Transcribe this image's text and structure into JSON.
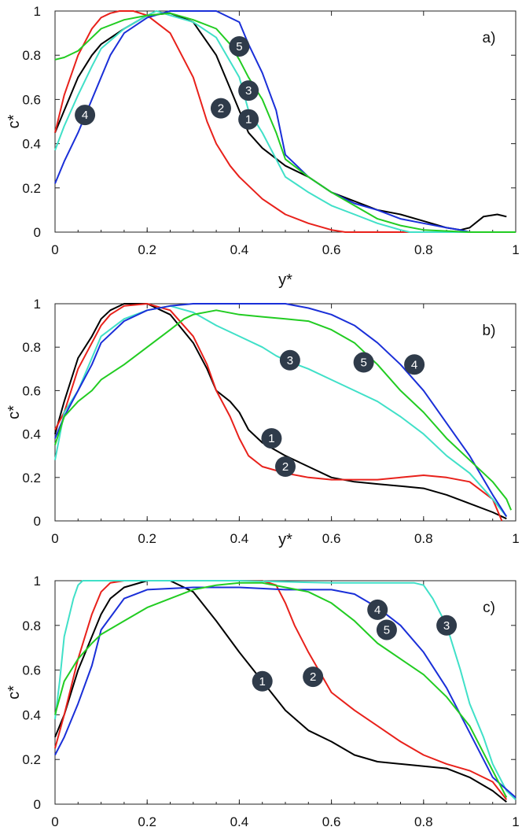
{
  "colors": {
    "1": "#000000",
    "2": "#e8211b",
    "3": "#40e0c8",
    "4": "#1a2fd8",
    "5": "#22cc22",
    "marker": "#2f3b4a"
  },
  "chart_data": [
    {
      "type": "line",
      "panel_label": "a)",
      "xlabel": "y*",
      "ylabel": "c*",
      "xlim": [
        0,
        1
      ],
      "ylim": [
        0,
        1
      ],
      "xticks": [
        "0",
        "0.2",
        "0.4",
        "0.6",
        "0.8",
        "1"
      ],
      "yticks": [
        "0",
        "0.2",
        "0.4",
        "0.6",
        "0.8",
        "1"
      ],
      "series": [
        {
          "name": "1",
          "x": [
            0,
            0.02,
            0.05,
            0.08,
            0.1,
            0.15,
            0.2,
            0.25,
            0.3,
            0.35,
            0.38,
            0.42,
            0.45,
            0.5,
            0.55,
            0.6,
            0.65,
            0.7,
            0.75,
            0.8,
            0.85,
            0.88,
            0.9,
            0.93,
            0.96,
            0.98
          ],
          "y": [
            0.45,
            0.55,
            0.7,
            0.8,
            0.85,
            0.92,
            0.98,
            0.99,
            0.95,
            0.8,
            0.65,
            0.45,
            0.38,
            0.3,
            0.25,
            0.18,
            0.14,
            0.1,
            0.08,
            0.05,
            0.02,
            0.01,
            0.02,
            0.07,
            0.08,
            0.07
          ]
        },
        {
          "name": "2",
          "x": [
            0,
            0.02,
            0.05,
            0.08,
            0.1,
            0.12,
            0.14,
            0.17,
            0.2,
            0.25,
            0.3,
            0.33,
            0.35,
            0.38,
            0.4,
            0.45,
            0.5,
            0.55,
            0.6,
            0.63,
            0.65,
            0.7,
            0.75,
            0.8
          ],
          "y": [
            0.45,
            0.62,
            0.8,
            0.92,
            0.97,
            0.99,
            1,
            1,
            0.98,
            0.9,
            0.7,
            0.5,
            0.4,
            0.3,
            0.25,
            0.15,
            0.08,
            0.04,
            0.01,
            0,
            0,
            0,
            0,
            0
          ]
        },
        {
          "name": "3",
          "x": [
            0,
            0.02,
            0.05,
            0.08,
            0.1,
            0.15,
            0.2,
            0.22,
            0.25,
            0.3,
            0.35,
            0.4,
            0.42,
            0.45,
            0.48,
            0.5,
            0.55,
            0.6,
            0.65,
            0.7,
            0.75,
            0.77,
            0.8,
            0.9,
            1.0
          ],
          "y": [
            0.37,
            0.48,
            0.62,
            0.75,
            0.83,
            0.92,
            0.98,
            1,
            0.98,
            0.95,
            0.88,
            0.7,
            0.55,
            0.45,
            0.33,
            0.25,
            0.18,
            0.12,
            0.08,
            0.04,
            0.01,
            0,
            0,
            0,
            0
          ]
        },
        {
          "name": "4",
          "x": [
            0,
            0.02,
            0.05,
            0.08,
            0.1,
            0.12,
            0.15,
            0.2,
            0.25,
            0.3,
            0.35,
            0.4,
            0.42,
            0.45,
            0.48,
            0.5,
            0.55,
            0.6,
            0.65,
            0.7,
            0.75,
            0.8,
            0.85,
            0.88,
            0.9,
            1.0
          ],
          "y": [
            0.22,
            0.32,
            0.45,
            0.6,
            0.7,
            0.8,
            0.9,
            0.97,
            1,
            1,
            1,
            0.95,
            0.85,
            0.72,
            0.55,
            0.35,
            0.25,
            0.18,
            0.13,
            0.1,
            0.06,
            0.04,
            0.02,
            0.01,
            0,
            0
          ]
        },
        {
          "name": "5",
          "x": [
            0,
            0.02,
            0.05,
            0.08,
            0.1,
            0.15,
            0.2,
            0.25,
            0.3,
            0.35,
            0.38,
            0.4,
            0.42,
            0.45,
            0.48,
            0.5,
            0.55,
            0.6,
            0.65,
            0.7,
            0.75,
            0.8,
            0.9,
            1.0
          ],
          "y": [
            0.78,
            0.79,
            0.82,
            0.88,
            0.92,
            0.96,
            0.98,
            0.99,
            0.96,
            0.92,
            0.85,
            0.78,
            0.7,
            0.6,
            0.45,
            0.33,
            0.25,
            0.18,
            0.12,
            0.06,
            0.03,
            0.01,
            0,
            0
          ]
        }
      ],
      "markers": [
        {
          "label": "1",
          "x": 0.42,
          "y": 0.51
        },
        {
          "label": "2",
          "x": 0.36,
          "y": 0.56
        },
        {
          "label": "3",
          "x": 0.42,
          "y": 0.64
        },
        {
          "label": "4",
          "x": 0.065,
          "y": 0.53
        },
        {
          "label": "5",
          "x": 0.4,
          "y": 0.84
        }
      ]
    },
    {
      "type": "line",
      "panel_label": "b)",
      "xlabel": "y*",
      "ylabel": "c*",
      "xlim": [
        0,
        1
      ],
      "ylim": [
        0,
        1
      ],
      "xticks": [
        "0",
        "0.2",
        "0.4",
        "0.6",
        "0.8",
        "1"
      ],
      "yticks": [
        "0",
        "0.2",
        "0.4",
        "0.6",
        "0.8",
        "1"
      ],
      "series": [
        {
          "name": "1",
          "x": [
            0,
            0.02,
            0.05,
            0.08,
            0.1,
            0.12,
            0.15,
            0.2,
            0.25,
            0.3,
            0.33,
            0.35,
            0.38,
            0.4,
            0.42,
            0.45,
            0.5,
            0.55,
            0.6,
            0.65,
            0.7,
            0.75,
            0.8,
            0.85,
            0.9,
            0.95,
            0.98
          ],
          "y": [
            0.4,
            0.55,
            0.75,
            0.85,
            0.93,
            0.97,
            1,
            1,
            0.95,
            0.82,
            0.7,
            0.6,
            0.55,
            0.5,
            0.42,
            0.36,
            0.3,
            0.25,
            0.2,
            0.18,
            0.17,
            0.16,
            0.15,
            0.12,
            0.08,
            0.04,
            0.01
          ]
        },
        {
          "name": "2",
          "x": [
            0,
            0.02,
            0.05,
            0.08,
            0.1,
            0.12,
            0.15,
            0.2,
            0.25,
            0.3,
            0.33,
            0.35,
            0.38,
            0.4,
            0.42,
            0.45,
            0.5,
            0.55,
            0.6,
            0.65,
            0.7,
            0.75,
            0.8,
            0.85,
            0.9,
            0.95,
            0.97
          ],
          "y": [
            0.42,
            0.5,
            0.7,
            0.82,
            0.9,
            0.95,
            0.99,
            1,
            0.97,
            0.85,
            0.72,
            0.6,
            0.48,
            0.38,
            0.3,
            0.25,
            0.22,
            0.2,
            0.19,
            0.19,
            0.19,
            0.2,
            0.21,
            0.2,
            0.18,
            0.1,
            0
          ]
        },
        {
          "name": "3",
          "x": [
            0,
            0.02,
            0.05,
            0.08,
            0.1,
            0.15,
            0.2,
            0.25,
            0.3,
            0.35,
            0.4,
            0.45,
            0.48,
            0.5,
            0.55,
            0.6,
            0.65,
            0.7,
            0.75,
            0.8,
            0.85,
            0.9,
            0.95,
            0.98
          ],
          "y": [
            0.28,
            0.5,
            0.6,
            0.75,
            0.85,
            0.93,
            0.97,
            0.99,
            0.96,
            0.9,
            0.85,
            0.8,
            0.76,
            0.74,
            0.7,
            0.65,
            0.6,
            0.55,
            0.48,
            0.4,
            0.3,
            0.22,
            0.1,
            0.02
          ]
        },
        {
          "name": "4",
          "x": [
            0,
            0.02,
            0.05,
            0.08,
            0.1,
            0.15,
            0.2,
            0.25,
            0.3,
            0.35,
            0.4,
            0.5,
            0.55,
            0.6,
            0.65,
            0.7,
            0.75,
            0.8,
            0.85,
            0.9,
            0.95,
            0.98
          ],
          "y": [
            0.38,
            0.48,
            0.6,
            0.72,
            0.82,
            0.92,
            0.97,
            0.99,
            1,
            1,
            1,
            1,
            0.98,
            0.95,
            0.9,
            0.82,
            0.72,
            0.6,
            0.45,
            0.3,
            0.12,
            0.02
          ]
        },
        {
          "name": "5",
          "x": [
            0,
            0.02,
            0.05,
            0.08,
            0.1,
            0.15,
            0.2,
            0.25,
            0.28,
            0.3,
            0.35,
            0.4,
            0.45,
            0.5,
            0.55,
            0.6,
            0.65,
            0.7,
            0.75,
            0.8,
            0.85,
            0.9,
            0.95,
            0.98,
            0.99
          ],
          "y": [
            0.35,
            0.48,
            0.55,
            0.6,
            0.65,
            0.72,
            0.8,
            0.88,
            0.93,
            0.95,
            0.97,
            0.95,
            0.94,
            0.93,
            0.92,
            0.88,
            0.82,
            0.72,
            0.6,
            0.5,
            0.38,
            0.28,
            0.18,
            0.1,
            0.05
          ]
        }
      ],
      "markers": [
        {
          "label": "1",
          "x": 0.47,
          "y": 0.38
        },
        {
          "label": "2",
          "x": 0.5,
          "y": 0.25
        },
        {
          "label": "3",
          "x": 0.51,
          "y": 0.74
        },
        {
          "label": "4",
          "x": 0.78,
          "y": 0.72
        },
        {
          "label": "5",
          "x": 0.67,
          "y": 0.73
        }
      ]
    },
    {
      "type": "line",
      "panel_label": "c)",
      "xlabel": "",
      "ylabel": "c*",
      "xlim": [
        0,
        1
      ],
      "ylim": [
        0,
        1
      ],
      "xticks": [
        "0",
        "0.2",
        "0.4",
        "0.6",
        "0.8",
        "1"
      ],
      "yticks": [
        "0",
        "0.2",
        "0.4",
        "0.6",
        "0.8",
        "1"
      ],
      "series": [
        {
          "name": "1",
          "x": [
            0,
            0.02,
            0.05,
            0.08,
            0.1,
            0.12,
            0.15,
            0.2,
            0.25,
            0.3,
            0.35,
            0.4,
            0.45,
            0.5,
            0.55,
            0.6,
            0.65,
            0.7,
            0.75,
            0.8,
            0.85,
            0.9,
            0.95,
            0.98
          ],
          "y": [
            0.3,
            0.4,
            0.6,
            0.75,
            0.85,
            0.92,
            0.97,
            1,
            1,
            0.95,
            0.82,
            0.68,
            0.55,
            0.42,
            0.33,
            0.28,
            0.22,
            0.19,
            0.18,
            0.17,
            0.16,
            0.12,
            0.06,
            0.01
          ]
        },
        {
          "name": "2",
          "x": [
            0,
            0.02,
            0.05,
            0.08,
            0.1,
            0.12,
            0.15,
            0.2,
            0.3,
            0.4,
            0.45,
            0.48,
            0.5,
            0.52,
            0.55,
            0.6,
            0.65,
            0.7,
            0.75,
            0.8,
            0.85,
            0.9,
            0.95,
            0.98
          ],
          "y": [
            0.25,
            0.4,
            0.65,
            0.85,
            0.95,
            0.99,
            1,
            1,
            1,
            1,
            1,
            0.98,
            0.9,
            0.8,
            0.68,
            0.5,
            0.42,
            0.35,
            0.28,
            0.22,
            0.18,
            0.15,
            0.1,
            0.02
          ]
        },
        {
          "name": "3",
          "x": [
            0,
            0.01,
            0.02,
            0.04,
            0.05,
            0.06,
            0.08,
            0.2,
            0.4,
            0.6,
            0.7,
            0.78,
            0.8,
            0.82,
            0.85,
            0.88,
            0.9,
            0.93,
            0.95,
            0.98,
            1.0
          ],
          "y": [
            0.38,
            0.55,
            0.75,
            0.92,
            0.98,
            1,
            1,
            1,
            1,
            0.99,
            0.99,
            0.99,
            0.98,
            0.92,
            0.8,
            0.6,
            0.45,
            0.3,
            0.18,
            0.06,
            0.02
          ]
        },
        {
          "name": "4",
          "x": [
            0,
            0.02,
            0.05,
            0.08,
            0.1,
            0.15,
            0.2,
            0.3,
            0.4,
            0.5,
            0.55,
            0.6,
            0.65,
            0.7,
            0.75,
            0.8,
            0.85,
            0.9,
            0.95,
            1.0
          ],
          "y": [
            0.22,
            0.3,
            0.45,
            0.62,
            0.78,
            0.92,
            0.96,
            0.97,
            0.97,
            0.96,
            0.96,
            0.96,
            0.94,
            0.88,
            0.8,
            0.68,
            0.52,
            0.32,
            0.12,
            0.03
          ]
        },
        {
          "name": "5",
          "x": [
            0,
            0.02,
            0.05,
            0.08,
            0.1,
            0.15,
            0.2,
            0.25,
            0.3,
            0.35,
            0.4,
            0.45,
            0.5,
            0.55,
            0.6,
            0.65,
            0.7,
            0.75,
            0.8,
            0.85,
            0.9,
            0.95,
            0.98
          ],
          "y": [
            0.4,
            0.55,
            0.65,
            0.72,
            0.76,
            0.82,
            0.88,
            0.92,
            0.96,
            0.98,
            0.99,
            0.99,
            0.97,
            0.95,
            0.9,
            0.82,
            0.72,
            0.65,
            0.58,
            0.48,
            0.35,
            0.15,
            0.03
          ]
        }
      ],
      "markers": [
        {
          "label": "1",
          "x": 0.45,
          "y": 0.55
        },
        {
          "label": "2",
          "x": 0.56,
          "y": 0.57
        },
        {
          "label": "3",
          "x": 0.85,
          "y": 0.8
        },
        {
          "label": "4",
          "x": 0.7,
          "y": 0.87
        },
        {
          "label": "5",
          "x": 0.72,
          "y": 0.78
        }
      ]
    }
  ]
}
